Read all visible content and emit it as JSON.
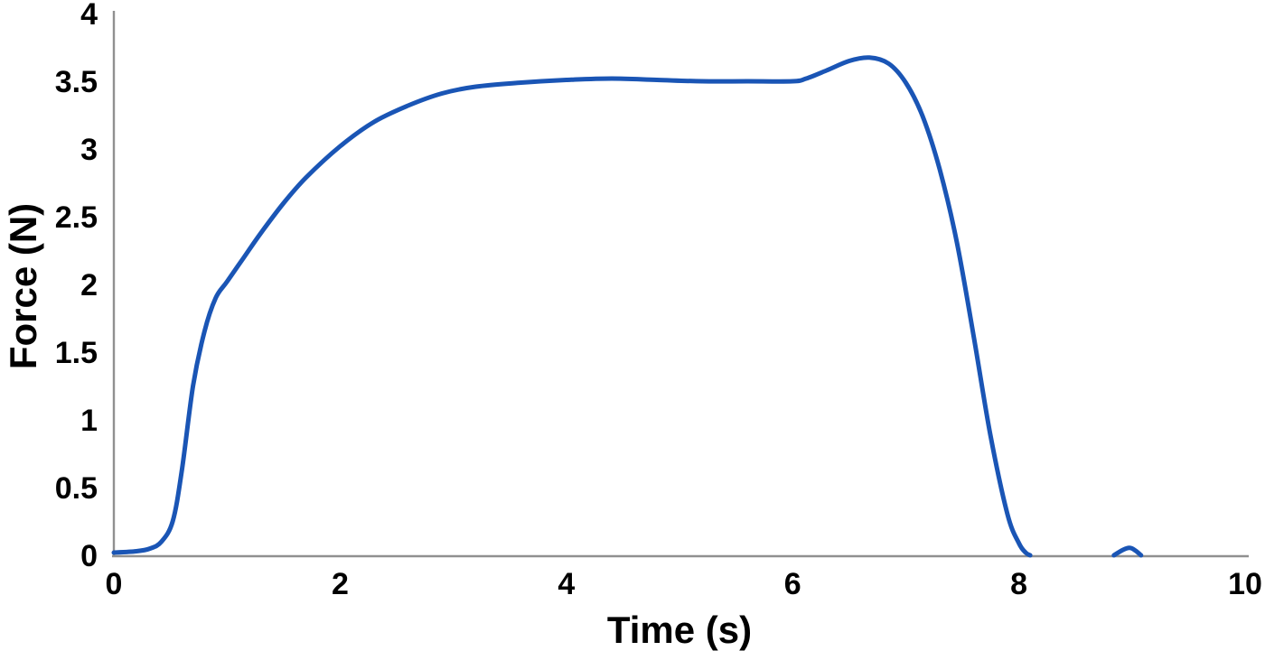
{
  "chart_data": {
    "type": "line",
    "title": "",
    "xlabel": "Time (s)",
    "ylabel": "Force (N)",
    "xlim": [
      0,
      10
    ],
    "ylim": [
      0,
      4
    ],
    "grid": false,
    "legend": false,
    "line_color": "#1a55b5",
    "axis_color": "#909090",
    "text_color": "#000000",
    "x_ticks": [
      {
        "label": "0",
        "value": 0
      },
      {
        "label": "2",
        "value": 2
      },
      {
        "label": "4",
        "value": 4
      },
      {
        "label": "6",
        "value": 6
      },
      {
        "label": "8",
        "value": 8
      },
      {
        "label": "10",
        "value": 10
      }
    ],
    "y_ticks": [
      {
        "label": "0",
        "value": 0
      },
      {
        "label": "0.5",
        "value": 0.5
      },
      {
        "label": "1",
        "value": 1
      },
      {
        "label": "1.5",
        "value": 1.5
      },
      {
        "label": "2",
        "value": 2
      },
      {
        "label": "2.5",
        "value": 2.5
      },
      {
        "label": "3",
        "value": 3
      },
      {
        "label": "3.5",
        "value": 3.5
      },
      {
        "label": "4",
        "value": 4
      }
    ],
    "series": [
      {
        "name": "Force",
        "color": "#1a55b5",
        "segments": [
          [
            [
              0,
              0.02
            ],
            [
              0.2,
              0.03
            ],
            [
              0.32,
              0.05
            ],
            [
              0.42,
              0.1
            ],
            [
              0.52,
              0.25
            ],
            [
              0.6,
              0.62
            ],
            [
              0.7,
              1.25
            ],
            [
              0.8,
              1.65
            ],
            [
              0.9,
              1.9
            ],
            [
              1.0,
              2.02
            ],
            [
              1.15,
              2.2
            ],
            [
              1.3,
              2.38
            ],
            [
              1.5,
              2.6
            ],
            [
              1.7,
              2.79
            ],
            [
              2.0,
              3.02
            ],
            [
              2.3,
              3.2
            ],
            [
              2.6,
              3.32
            ],
            [
              2.9,
              3.41
            ],
            [
              3.2,
              3.46
            ],
            [
              3.6,
              3.49
            ],
            [
              4.0,
              3.51
            ],
            [
              4.4,
              3.52
            ],
            [
              4.8,
              3.51
            ],
            [
              5.2,
              3.5
            ],
            [
              5.6,
              3.5
            ],
            [
              6.0,
              3.5
            ],
            [
              6.12,
              3.52
            ],
            [
              6.3,
              3.58
            ],
            [
              6.5,
              3.65
            ],
            [
              6.68,
              3.675
            ],
            [
              6.85,
              3.63
            ],
            [
              7.0,
              3.49
            ],
            [
              7.15,
              3.24
            ],
            [
              7.3,
              2.85
            ],
            [
              7.45,
              2.32
            ],
            [
              7.6,
              1.62
            ],
            [
              7.75,
              0.88
            ],
            [
              7.9,
              0.3
            ],
            [
              8.0,
              0.09
            ],
            [
              8.06,
              0.02
            ],
            [
              8.1,
              0
            ]
          ],
          [
            [
              8.84,
              0
            ],
            [
              8.92,
              0.04
            ],
            [
              8.98,
              0.055
            ],
            [
              9.03,
              0.035
            ],
            [
              9.08,
              0
            ]
          ]
        ]
      }
    ]
  }
}
